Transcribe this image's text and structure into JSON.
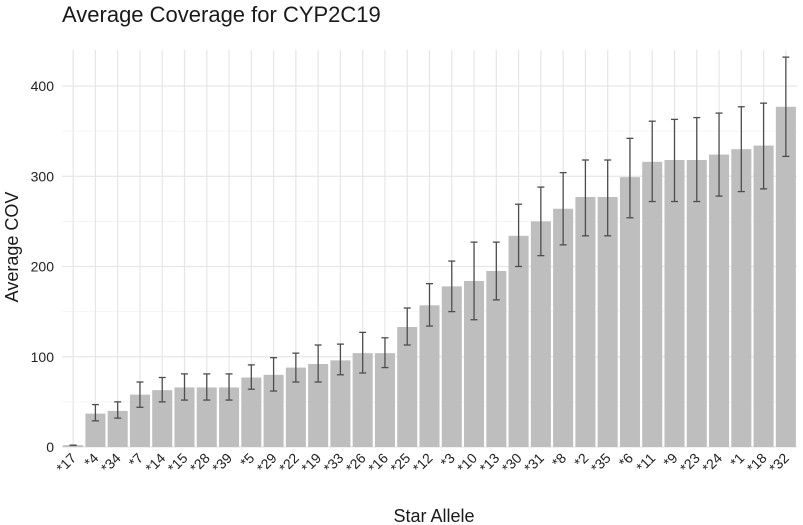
{
  "chart_data": {
    "type": "bar",
    "title": "Average Coverage for CYP2C19",
    "xlabel": "Star Allele",
    "ylabel": "Average COV",
    "ylim": [
      0,
      440
    ],
    "yticks": [
      0,
      100,
      200,
      300,
      400
    ],
    "grid": true,
    "legend": "none",
    "bar_color": "#bebebe",
    "error_color": "#4d4d4d",
    "categories": [
      "*17",
      "*4",
      "*34",
      "*7",
      "*14",
      "*15",
      "*28",
      "*39",
      "*5",
      "*29",
      "*22",
      "*19",
      "*33",
      "*26",
      "*16",
      "*25",
      "*12",
      "*3",
      "*10",
      "*13",
      "*30",
      "*31",
      "*8",
      "*2",
      "*35",
      "*6",
      "*11",
      "*9",
      "*23",
      "*24",
      "*1",
      "*18",
      "*32"
    ],
    "values": [
      2,
      37,
      40,
      58,
      63,
      66,
      66,
      66,
      77,
      80,
      88,
      92,
      96,
      104,
      104,
      133,
      157,
      178,
      184,
      195,
      234,
      250,
      264,
      277,
      277,
      299,
      316,
      318,
      318,
      324,
      330,
      334,
      377
    ],
    "error_low": [
      2,
      29,
      32,
      44,
      50,
      52,
      52,
      52,
      64,
      62,
      72,
      72,
      80,
      82,
      88,
      113,
      134,
      150,
      141,
      163,
      200,
      212,
      224,
      234,
      234,
      254,
      272,
      272,
      272,
      278,
      283,
      286,
      322
    ],
    "error_high": [
      2,
      47,
      50,
      72,
      77,
      81,
      81,
      81,
      91,
      99,
      104,
      113,
      114,
      127,
      121,
      154,
      181,
      206,
      227,
      227,
      269,
      288,
      304,
      318,
      318,
      342,
      361,
      363,
      365,
      370,
      377,
      381,
      432
    ]
  }
}
